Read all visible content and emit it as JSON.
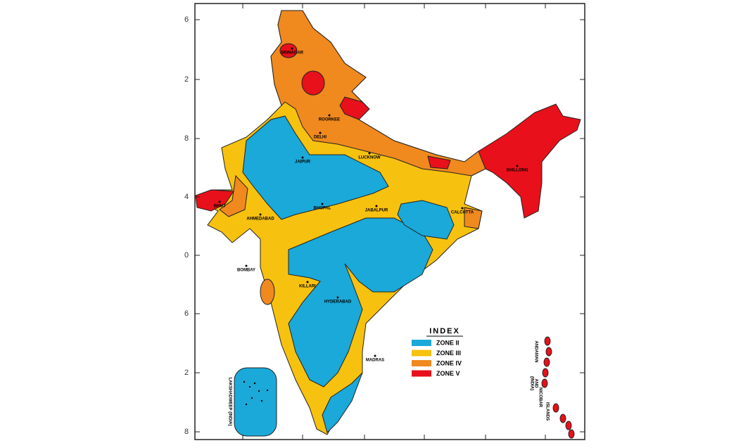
{
  "axis_labels": [
    "6",
    "2",
    "8",
    "4",
    "0",
    "6",
    "2",
    "8"
  ],
  "cities": [
    "SRINAGAR",
    "ROORKEE",
    "DELHI",
    "JAIPUR",
    "LUCKNOW",
    "SHILLONG",
    "BHUJ",
    "AHMEDABAD",
    "BHOPAL",
    "JABALPUR",
    "CALCUTTA",
    "BOMBAY",
    "KILLARI",
    "HYDERABAD",
    "MADRAS"
  ],
  "islands": {
    "lakshadweep": "LAKSHADWEEP (INDIA)",
    "andaman": [
      "ANDAMAN",
      "AND",
      "NICOBAR",
      "ISLANDS",
      "(INDIA)"
    ]
  },
  "legend": {
    "title": "INDEX",
    "items": [
      {
        "label": "ZONE II",
        "color": "#1aa9d9"
      },
      {
        "label": "ZONE III",
        "color": "#f7c10f"
      },
      {
        "label": "ZONE IV",
        "color": "#f0891e"
      },
      {
        "label": "ZONE V",
        "color": "#e8101a"
      }
    ]
  }
}
